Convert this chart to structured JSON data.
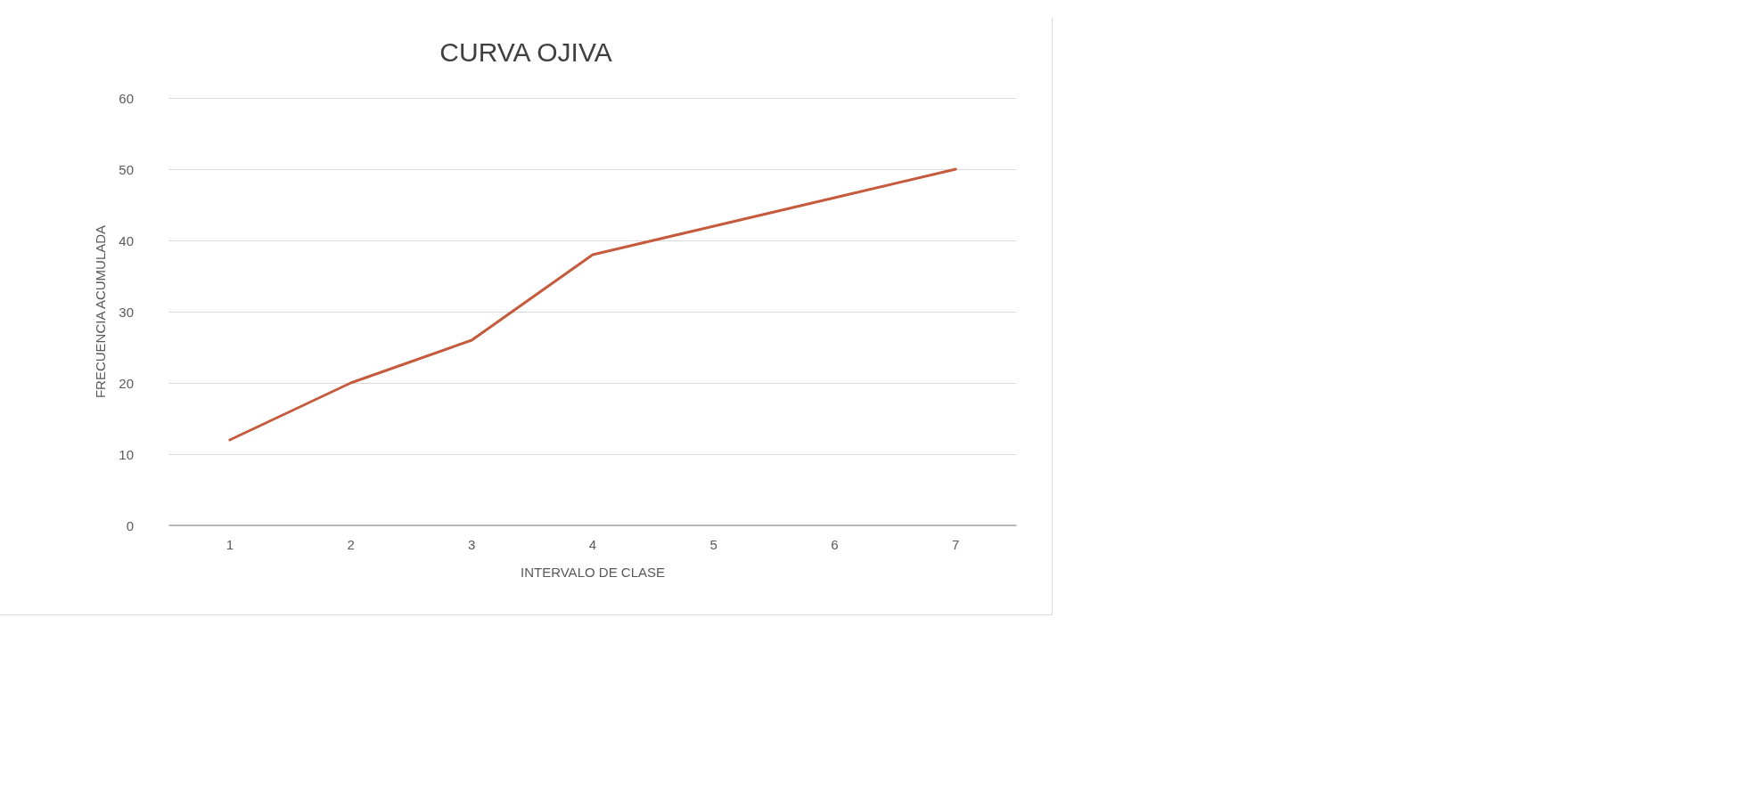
{
  "chart_data": {
    "type": "line",
    "title": "CURVA OJIVA",
    "xlabel": "INTERVALO DE CLASE",
    "ylabel": "FRECUENCIA ACUMULADA",
    "categories": [
      "1",
      "2",
      "3",
      "4",
      "5",
      "6",
      "7"
    ],
    "values": [
      12,
      20,
      26,
      38,
      42,
      46,
      50
    ],
    "color": "#c55a3c",
    "ylim": [
      0,
      60
    ],
    "yticks": [
      0,
      10,
      20,
      30,
      40,
      50,
      60
    ],
    "grid": "y",
    "marker": "none",
    "line_style": "solid"
  }
}
